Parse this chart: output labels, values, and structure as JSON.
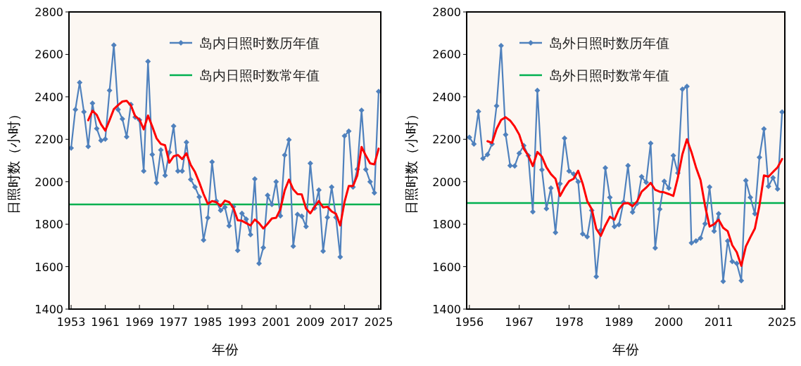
{
  "chart_data": [
    {
      "type": "line",
      "xlabel": "年份",
      "ylabel": "日照时数（小时）",
      "x": [
        1953,
        1954,
        1955,
        1956,
        1957,
        1958,
        1959,
        1960,
        1961,
        1962,
        1963,
        1964,
        1965,
        1966,
        1967,
        1968,
        1969,
        1970,
        1971,
        1972,
        1973,
        1974,
        1975,
        1976,
        1977,
        1978,
        1979,
        1980,
        1981,
        1982,
        1983,
        1984,
        1985,
        1986,
        1987,
        1988,
        1989,
        1990,
        1991,
        1992,
        1993,
        1994,
        1995,
        1996,
        1997,
        1998,
        1999,
        2000,
        2001,
        2002,
        2003,
        2004,
        2005,
        2006,
        2007,
        2008,
        2009,
        2010,
        2011,
        2012,
        2013,
        2014,
        2015,
        2016,
        2017,
        2018,
        2019,
        2020,
        2021,
        2022,
        2023,
        2024,
        2025
      ],
      "series": [
        {
          "name": "岛内日照时数历年值",
          "color": "#4f81bd",
          "marker": "diamond",
          "values": [
            2159,
            2340,
            2467,
            2329,
            2166,
            2370,
            2251,
            2194,
            2201,
            2430,
            2644,
            2340,
            2296,
            2212,
            2364,
            2304,
            2291,
            2050,
            2567,
            2128,
            1995,
            2150,
            2030,
            2139,
            2262,
            2050,
            2050,
            2186,
            2011,
            1975,
            1929,
            1725,
            1830,
            2093,
            1909,
            1865,
            1880,
            1792,
            1882,
            1676,
            1851,
            1824,
            1751,
            2013,
            1615,
            1690,
            1936,
            1893,
            2000,
            1839,
            2126,
            2198,
            1696,
            1846,
            1838,
            1789,
            2087,
            1876,
            1961,
            1673,
            1832,
            1975,
            1832,
            1646,
            2216,
            2238,
            1975,
            2059,
            2337,
            2058,
            2000,
            1948,
            2425
          ]
        },
        {
          "color": "#ff0000",
          "marker": "none",
          "values": [
            null,
            null,
            null,
            null,
            2290,
            2335,
            2315,
            2271,
            2241,
            2290,
            2342,
            2361,
            2378,
            2381,
            2359,
            2309,
            2293,
            2247,
            2312,
            2260,
            2205,
            2178,
            2172,
            2090,
            2120,
            2126,
            2107,
            2134,
            2079,
            2046,
            1997,
            1942,
            1896,
            1909,
            1904,
            1885,
            1911,
            1904,
            1876,
            1819,
            1816,
            1805,
            1794,
            1822,
            1805,
            1780,
            1802,
            1827,
            1830,
            1871,
            1959,
            2010,
            1964,
            1942,
            1940,
            1874,
            1851,
            1882,
            1909,
            1879,
            1882,
            1860,
            1849,
            1794,
            1904,
            1980,
            1980,
            2030,
            2164,
            2123,
            2087,
            2082,
            2156
          ]
        }
      ],
      "ref_lines": [
        {
          "axis": "y",
          "value": 1893,
          "label": "岛内日照时数常年值",
          "color": "#00b050"
        }
      ],
      "xlim": [
        1952.5,
        2025.5
      ],
      "xticks": [
        1953,
        1961,
        1969,
        1977,
        1985,
        1993,
        2001,
        2009,
        2017,
        2025
      ],
      "ylim": [
        1400,
        2800
      ],
      "yticks": [
        1400,
        1600,
        1800,
        2000,
        2200,
        2400,
        2600,
        2800
      ],
      "legend": "top right",
      "line_style": "solid"
    },
    {
      "type": "line",
      "xlabel": "年份",
      "ylabel": "日照时数（小时）",
      "x": [
        1956,
        1957,
        1958,
        1959,
        1960,
        1961,
        1962,
        1963,
        1964,
        1965,
        1966,
        1967,
        1968,
        1969,
        1970,
        1971,
        1972,
        1973,
        1974,
        1975,
        1976,
        1977,
        1978,
        1979,
        1980,
        1981,
        1982,
        1983,
        1984,
        1985,
        1986,
        1987,
        1988,
        1989,
        1990,
        1991,
        1992,
        1993,
        1994,
        1995,
        1996,
        1997,
        1998,
        1999,
        2000,
        2001,
        2002,
        2003,
        2004,
        2005,
        2006,
        2007,
        2008,
        2009,
        2010,
        2011,
        2012,
        2013,
        2014,
        2015,
        2016,
        2017,
        2018,
        2019,
        2020,
        2021,
        2022,
        2023,
        2024,
        2025
      ],
      "series": [
        {
          "name": "岛外日照时数历年值",
          "color": "#4f81bd",
          "marker": "diamond",
          "values": [
            2209,
            2178,
            2331,
            2110,
            2128,
            2178,
            2357,
            2641,
            2222,
            2076,
            2074,
            2134,
            2170,
            2123,
            1858,
            2430,
            2056,
            1873,
            1970,
            1761,
            1991,
            2205,
            2050,
            2036,
            2000,
            1754,
            1741,
            1865,
            1553,
            1772,
            2065,
            1926,
            1789,
            1798,
            1904,
            2076,
            1857,
            1898,
            2024,
            1997,
            2181,
            1688,
            1871,
            2002,
            1970,
            2123,
            2041,
            2436,
            2449,
            1712,
            1721,
            1734,
            1802,
            1975,
            1767,
            1849,
            1531,
            1721,
            1624,
            1615,
            1534,
            2006,
            1926,
            1849,
            2115,
            2249,
            1978,
            2019,
            1966,
            2328
          ]
        },
        {
          "color": "#ff0000",
          "marker": "none",
          "values": [
            null,
            null,
            null,
            null,
            2191,
            2183,
            2249,
            2291,
            2304,
            2288,
            2260,
            2222,
            2156,
            2123,
            2074,
            2140,
            2118,
            2068,
            2036,
            2014,
            1933,
            1972,
            2003,
            2014,
            2052,
            1991,
            1909,
            1871,
            1778,
            1745,
            1794,
            1835,
            1821,
            1871,
            1897,
            1900,
            1885,
            1907,
            1953,
            1972,
            1995,
            1962,
            1953,
            1950,
            1942,
            1933,
            2019,
            2129,
            2200,
            2140,
            2068,
            2008,
            1887,
            1789,
            1800,
            1821,
            1783,
            1767,
            1701,
            1668,
            1604,
            1695,
            1739,
            1780,
            1887,
            2030,
            2024,
            2046,
            2068,
            2107
          ]
        }
      ],
      "ref_lines": [
        {
          "axis": "y",
          "value": 1900,
          "label": "岛外日照时数常年值",
          "color": "#00b050"
        }
      ],
      "xlim": [
        1955.4,
        2025.6
      ],
      "xticks": [
        1956,
        1967,
        1978,
        1989,
        2000,
        2011,
        2025
      ],
      "ylim": [
        1400,
        2800
      ],
      "yticks": [
        1400,
        1600,
        1800,
        2000,
        2200,
        2400,
        2600,
        2800
      ],
      "legend": "top left",
      "line_style": "solid"
    }
  ]
}
